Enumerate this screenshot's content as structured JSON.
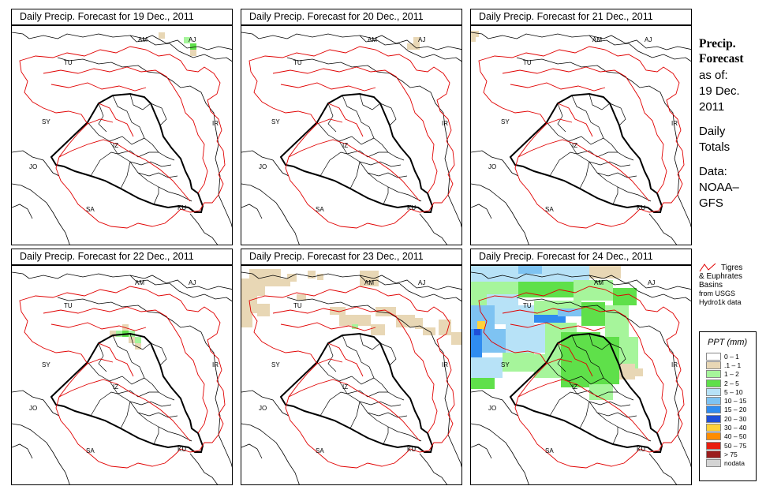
{
  "panels": [
    {
      "title": "Daily Precip. Forecast for  19 Dec., 2011"
    },
    {
      "title": "Daily Precip. Forecast for  20 Dec., 2011"
    },
    {
      "title": "Daily Precip. Forecast for  21 Dec., 2011"
    },
    {
      "title": "Daily Precip. Forecast for  22 Dec., 2011"
    },
    {
      "title": "Daily Precip. Forecast for  23 Dec., 2011"
    },
    {
      "title": "Daily Precip. Forecast for  24 Dec., 2011"
    }
  ],
  "country_labels": {
    "AM": "AM",
    "AJ": "AJ",
    "TU": "TU",
    "SY": "SY",
    "IR": "IR",
    "IZ": "IZ",
    "JO": "JO",
    "SA": "SA",
    "KU": "KU"
  },
  "sidebar": {
    "title_line1": "Precip.",
    "title_line2": "Forecast",
    "asof_label": "as of:",
    "asof_line1": "19 Dec.",
    "asof_line2": "2011",
    "daily_line1": "Daily",
    "daily_line2": "Totals",
    "data_line1": "Data:",
    "data_line2": "NOAA–",
    "data_line3": "GFS"
  },
  "basin_legend": {
    "label1": "Tigres",
    "label2": "& Euphrates",
    "label3": "Basins",
    "source1": "from USGS",
    "source2": "Hydro1k data",
    "color": "#e00000"
  },
  "ppt_legend": {
    "title": "PPT (mm)",
    "items": [
      {
        "label": "0 – 1",
        "color": "#ffffff"
      },
      {
        "label": ".1 – 1",
        "color": "#e8d7b5"
      },
      {
        "label": "1 – 2",
        "color": "#a6f59b"
      },
      {
        "label": "2 – 5",
        "color": "#5fe04a"
      },
      {
        "label": "5 – 10",
        "color": "#b7e2f7"
      },
      {
        "label": "10 – 15",
        "color": "#7ec3f2"
      },
      {
        "label": "15 – 20",
        "color": "#2f8cf0"
      },
      {
        "label": "20 – 30",
        "color": "#1f4fd8"
      },
      {
        "label": "30 – 40",
        "color": "#ffd23a"
      },
      {
        "label": "40 – 50",
        "color": "#ff8c00"
      },
      {
        "label": "50 – 75",
        "color": "#e81e10"
      },
      {
        "label": "> 75",
        "color": "#9b1d1d"
      },
      {
        "label": "nodata",
        "color": "#d4d4d4"
      }
    ]
  }
}
